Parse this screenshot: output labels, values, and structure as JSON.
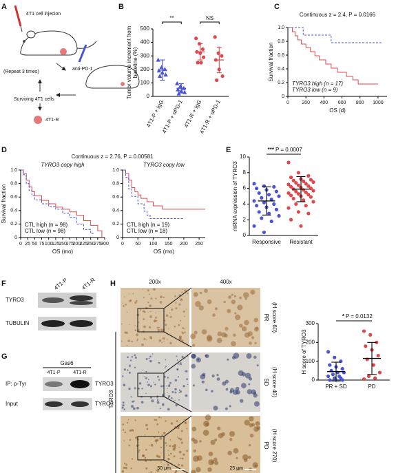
{
  "panels": {
    "letters": [
      "A",
      "B",
      "C",
      "D",
      "E",
      "F",
      "G",
      "H"
    ],
    "a": {
      "injection": "4T1 cell injecion",
      "treatment": "anti-PD-1",
      "repeat": "(Repeat 3 times)",
      "surviving": "Surviving 4T1 cells",
      "result": "4T1-R"
    },
    "f": {
      "lanes": [
        "4T1-P",
        "4T1-R"
      ],
      "rows": [
        "TYRO3",
        "TUBULIN"
      ]
    },
    "g": {
      "treatment": "Gas6",
      "lanes": [
        "4T1-P",
        "4T1-R"
      ],
      "rows": [
        {
          "left": "IP: p-Tyr",
          "right": "TYRO3"
        },
        {
          "left": "Input",
          "right": "TYRO3"
        }
      ]
    },
    "h": {
      "magnifications": [
        "200x",
        "400x"
      ],
      "stain": "TYRO3",
      "rows": [
        {
          "response": "PR",
          "score": "(H score 60)"
        },
        {
          "response": "SD",
          "score": "(H score 40)"
        },
        {
          "response": "PD",
          "score": "(H score 270)"
        }
      ],
      "scale_bars": [
        "50 μm",
        "25 μm"
      ]
    }
  },
  "chart_data": [
    {
      "type": "dot",
      "ylabel": [
        "Tumor volume increment from",
        "baseline (%)"
      ],
      "categories": [
        "4T1-P + IgG",
        "4T1-P + αPD-1",
        "4T1-R + IgG",
        "4T1-R + αPD-1"
      ],
      "values": [
        [
          270,
          215,
          200,
          190,
          175,
          160,
          150
        ],
        [
          95,
          75,
          60,
          50,
          40,
          30,
          20
        ],
        [
          430,
          390,
          350,
          330,
          320,
          290,
          250,
          250
        ],
        [
          440,
          320,
          300,
          270,
          200,
          150,
          120
        ]
      ],
      "mean": [
        195,
        60,
        330,
        270
      ],
      "sd": [
        75,
        35,
        60,
        95
      ],
      "colors": [
        "#4a55d6",
        "#4a55d6",
        "#e0474c",
        "#e0474c"
      ],
      "markers": [
        "triangle",
        "triangle",
        "circle",
        "circle"
      ],
      "rotate_labels": true,
      "ylim": [
        0,
        500
      ],
      "yticks": [
        0,
        100,
        200,
        300,
        400,
        500
      ],
      "annotations": [
        "**",
        "NS"
      ]
    },
    {
      "type": "km",
      "title": "Continuous z = 2.4, P = 0.0166",
      "xlabel": "OS (d)",
      "ylabel": "Survival fraction",
      "xlim": [
        0,
        1100
      ],
      "xticks": [
        0,
        200,
        400,
        600,
        800,
        1000
      ],
      "ylim": [
        0,
        1
      ],
      "yticks": [
        0,
        0.2,
        0.4,
        0.6,
        0.8,
        {
          "value": 1,
          "label": "1.0"
        }
      ],
      "legend": "lower left",
      "series": [
        {
          "name": "TYRO3 high (n = 17)",
          "color": "#e0474c",
          "dashed": false,
          "x": [
            0,
            50,
            80,
            110,
            150,
            200,
            250,
            300,
            350,
            420,
            480,
            550,
            650,
            720,
            780,
            1000
          ],
          "y": [
            1,
            0.94,
            0.88,
            0.82,
            0.76,
            0.71,
            0.65,
            0.59,
            0.53,
            0.47,
            0.41,
            0.35,
            0.29,
            0.24,
            0.18,
            0.18
          ]
        },
        {
          "name": "TYRO3 low (n = 9)",
          "color": "#4a55d6",
          "dashed": true,
          "x": [
            0,
            170,
            480,
            1050
          ],
          "y": [
            1,
            0.89,
            0.78,
            0.78
          ]
        }
      ]
    },
    {
      "type": "km",
      "title": "Continuous z = 2.76, P = 0.00581",
      "subtitle": "TYRO3 copy high",
      "xlabel": "OS (mo)",
      "ylabel": "Survival fraction",
      "xlim": [
        0,
        300
      ],
      "xticks": [
        0,
        25,
        50,
        75,
        100,
        125,
        150,
        175,
        200,
        225,
        250,
        275,
        300
      ],
      "ylim": [
        0,
        1
      ],
      "yticks": [
        0,
        0.2,
        0.4,
        0.6,
        0.8,
        {
          "value": 1,
          "label": "1.0"
        }
      ],
      "legend": "lower left",
      "series": [
        {
          "name": "CTL high (n = 98)",
          "color": "#e0474c",
          "dashed": false,
          "x": [
            0,
            10,
            20,
            30,
            40,
            50,
            75,
            100,
            125,
            150,
            175,
            200,
            225,
            250,
            275,
            290
          ],
          "y": [
            1,
            0.95,
            0.85,
            0.75,
            0.68,
            0.62,
            0.55,
            0.5,
            0.45,
            0.42,
            0.38,
            0.33,
            0.25,
            0.18,
            0.1,
            0
          ]
        },
        {
          "name": "CTL low (n = 98)",
          "color": "#4a55d6",
          "dashed": true,
          "x": [
            0,
            10,
            20,
            30,
            40,
            50,
            75,
            100,
            125,
            150,
            175,
            200,
            225,
            250,
            260
          ],
          "y": [
            1,
            0.93,
            0.8,
            0.7,
            0.62,
            0.56,
            0.5,
            0.46,
            0.42,
            0.36,
            0.3,
            0.2,
            0.12,
            0.06,
            0.06
          ]
        }
      ]
    },
    {
      "type": "km",
      "subtitle": "TYRO3 copy low",
      "xlabel": "OS (mo)",
      "xlim": [
        0,
        270
      ],
      "xticks": [
        0,
        50,
        100,
        150,
        200,
        250
      ],
      "ylim": [
        0,
        1
      ],
      "yticks": [
        0,
        0.2,
        0.4,
        0.6,
        0.8,
        {
          "value": 1,
          "label": "1.0"
        }
      ],
      "legend": "lower left",
      "series": [
        {
          "name": "CTL high (n = 19)",
          "color": "#e0474c",
          "dashed": false,
          "x": [
            0,
            10,
            20,
            30,
            40,
            50,
            60,
            80,
            100,
            130,
            250,
            270
          ],
          "y": [
            1,
            0.95,
            0.85,
            0.74,
            0.68,
            0.63,
            0.58,
            0.53,
            0.47,
            0.42,
            0.42,
            0.42
          ]
        },
        {
          "name": "CTL low (n = 18)",
          "color": "#4a55d6",
          "dashed": true,
          "x": [
            0,
            10,
            20,
            30,
            50,
            70,
            80,
            90,
            200
          ],
          "y": [
            1,
            0.89,
            0.72,
            0.61,
            0.5,
            0.39,
            0.33,
            0.28,
            0.28
          ]
        }
      ]
    },
    {
      "type": "dot",
      "ylabel": "mRNA expression of TYRO3",
      "categories": [
        "Responsive",
        "Resistant"
      ],
      "values": [
        [
          6.6,
          6.3,
          6.2,
          6.0,
          5.8,
          5.6,
          5.4,
          5.2,
          5.0,
          4.8,
          4.6,
          4.4,
          4.2,
          4.0,
          3.8,
          3.6,
          3.3,
          3.0,
          2.8,
          2.5,
          2.2,
          1.8,
          1.2,
          0.4
        ],
        [
          9.3,
          8.0,
          7.6,
          7.4,
          7.2,
          7.1,
          7.0,
          6.9,
          6.8,
          6.7,
          6.6,
          6.5,
          6.4,
          6.3,
          6.2,
          6.1,
          6.0,
          5.9,
          5.8,
          5.7,
          5.6,
          5.5,
          5.4,
          5.3,
          5.2,
          5.1,
          5.0,
          4.9,
          4.7,
          4.5,
          4.3,
          4.0,
          3.8,
          3.5,
          3.0,
          2.8,
          2.0,
          1.2
        ]
      ],
      "mean": [
        4.4,
        5.9
      ],
      "sd": [
        1.8,
        1.6
      ],
      "colors": [
        "#4a55d6",
        "#e0474c"
      ],
      "markers": [
        "circle",
        "circle"
      ],
      "summary_color": "#000000",
      "ylim": [
        0,
        10
      ],
      "yticks": [
        0,
        2,
        4,
        6,
        8,
        10
      ],
      "annotations": [
        "***",
        "P = 0.0007"
      ]
    },
    {
      "type": "dot",
      "ylabel": "H score of TYRO3",
      "categories": [
        "PR + SD",
        "PD"
      ],
      "values": [
        [
          150,
          120,
          100,
          80,
          70,
          60,
          50,
          40,
          40,
          30,
          20,
          20,
          10,
          10,
          0,
          0,
          0
        ],
        [
          260,
          240,
          200,
          180,
          160,
          130,
          110,
          80,
          40,
          20,
          10,
          5
        ]
      ],
      "mean": [
        45,
        115
      ],
      "sd": [
        50,
        85
      ],
      "colors": [
        "#4a55d6",
        "#e0474c"
      ],
      "markers": [
        "circle",
        "circle"
      ],
      "summary_color": "#000000",
      "ylim": [
        0,
        300
      ],
      "yticks": [
        0,
        100,
        200,
        300
      ],
      "annotations": [
        "*",
        "P = 0.0132"
      ]
    }
  ]
}
